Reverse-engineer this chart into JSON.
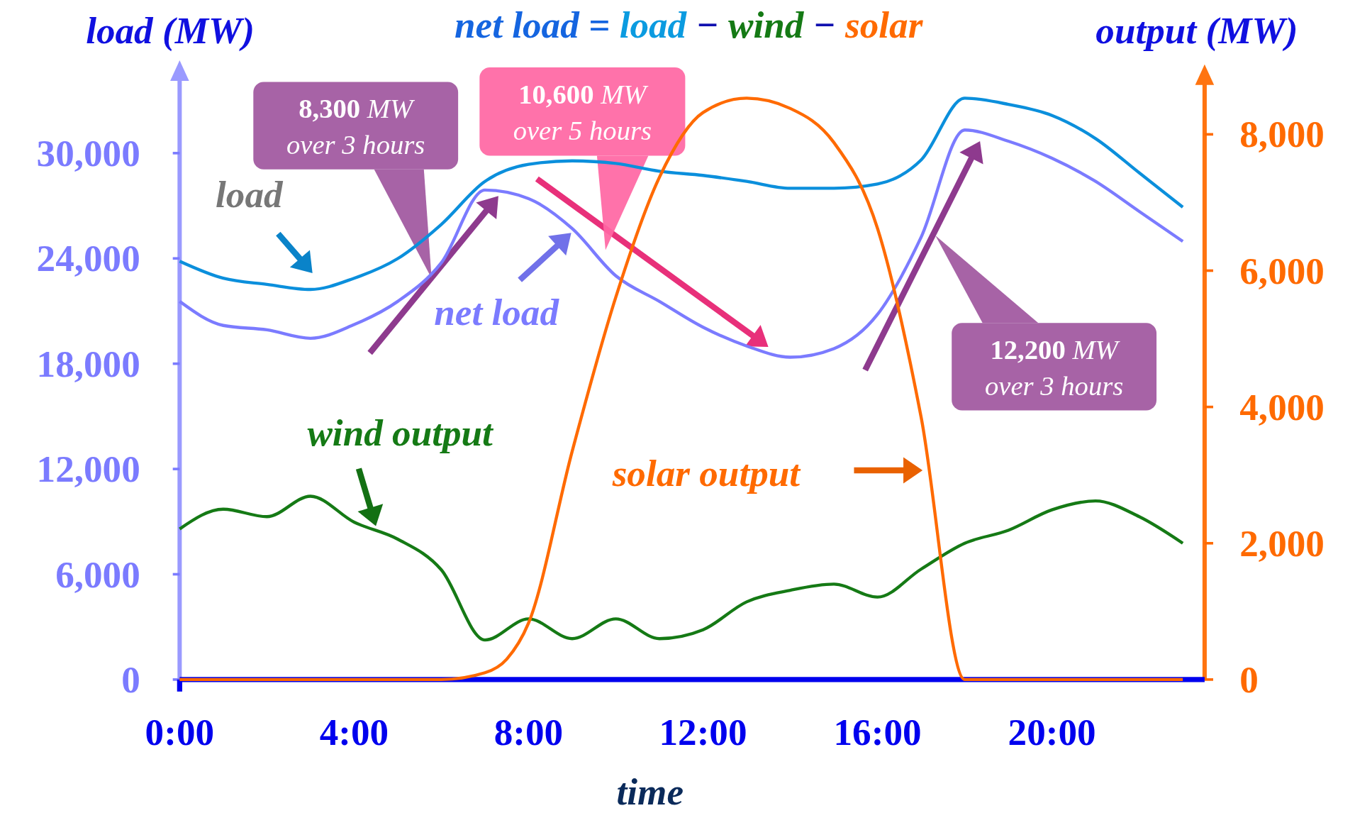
{
  "chart_data": {
    "type": "line",
    "title": "net load = load − wind − solar",
    "xlabel": "time",
    "ylabel": "load (MW)",
    "y2label": "output (MW)",
    "x": [
      0,
      1,
      2,
      3,
      4,
      5,
      6,
      7,
      8,
      9,
      10,
      11,
      12,
      13,
      14,
      15,
      16,
      17,
      18,
      19,
      20,
      21,
      22,
      23
    ],
    "xlim": [
      0,
      23.5
    ],
    "xticks": [
      {
        "value": 0,
        "label": "0:00"
      },
      {
        "value": 4,
        "label": "4:00"
      },
      {
        "value": 8,
        "label": "8:00"
      },
      {
        "value": 12,
        "label": "12:00"
      },
      {
        "value": 16,
        "label": "16:00"
      },
      {
        "value": 20,
        "label": "20:00"
      }
    ],
    "ylim": [
      0,
      34800
    ],
    "yticks": [
      0,
      {
        "value": 6000,
        "label": "6,000"
      },
      {
        "value": 12000,
        "label": "12,000"
      },
      {
        "value": 18000,
        "label": "18,000"
      },
      {
        "value": 24000,
        "label": "24,000"
      },
      {
        "value": 30000,
        "label": "30,000"
      }
    ],
    "y2lim": [
      0,
      8900
    ],
    "y2ticks": [
      0,
      {
        "value": 2000,
        "label": "2,000"
      },
      {
        "value": 4000,
        "label": "4,000"
      },
      {
        "value": 6000,
        "label": "6,000"
      },
      {
        "value": 8000,
        "label": "8,000"
      }
    ],
    "marker": "none",
    "line_style": "solid",
    "grid": false,
    "series": [
      {
        "name": "load",
        "color": "#0b8fdc",
        "values": [
          23840,
          22870,
          22520,
          22230,
          22870,
          23990,
          25940,
          28390,
          29360,
          29560,
          29410,
          28970,
          28730,
          28390,
          28000,
          28000,
          28240,
          29610,
          33130,
          32780,
          32150,
          30830,
          28880,
          26920
        ]
      },
      {
        "name": "net load",
        "color": "#7b7bff",
        "values": [
          21550,
          20180,
          19930,
          19450,
          20230,
          21550,
          23750,
          27900,
          27410,
          25700,
          23010,
          21550,
          20080,
          19010,
          18370,
          18860,
          20810,
          25210,
          31320,
          30680,
          29710,
          28390,
          26680,
          24970
        ]
      },
      {
        "name": "wind output",
        "color": "#157a15",
        "axis": "y2",
        "values": [
          2210,
          2500,
          2390,
          2690,
          2310,
          2060,
          1610,
          580,
          890,
          600,
          890,
          600,
          730,
          1140,
          1310,
          1400,
          1210,
          1620,
          2000,
          2190,
          2490,
          2620,
          2390,
          2000
        ]
      },
      {
        "name": "solar output",
        "color": "#ff6a00",
        "axis": "y2",
        "x": [
          0,
          6,
          7,
          7.5,
          8,
          9,
          10,
          11,
          12,
          13,
          14,
          15,
          16,
          17,
          18,
          19,
          23
        ],
        "values": [
          0,
          0,
          100,
          300,
          830,
          3350,
          5610,
          7370,
          8320,
          8530,
          8380,
          7880,
          6620,
          3850,
          0,
          0,
          0
        ]
      }
    ],
    "annotations": [
      "8,300 MW over 3 hours",
      "10,600 MW over 5 hours",
      "12,200 MW over 3 hours"
    ]
  }
}
